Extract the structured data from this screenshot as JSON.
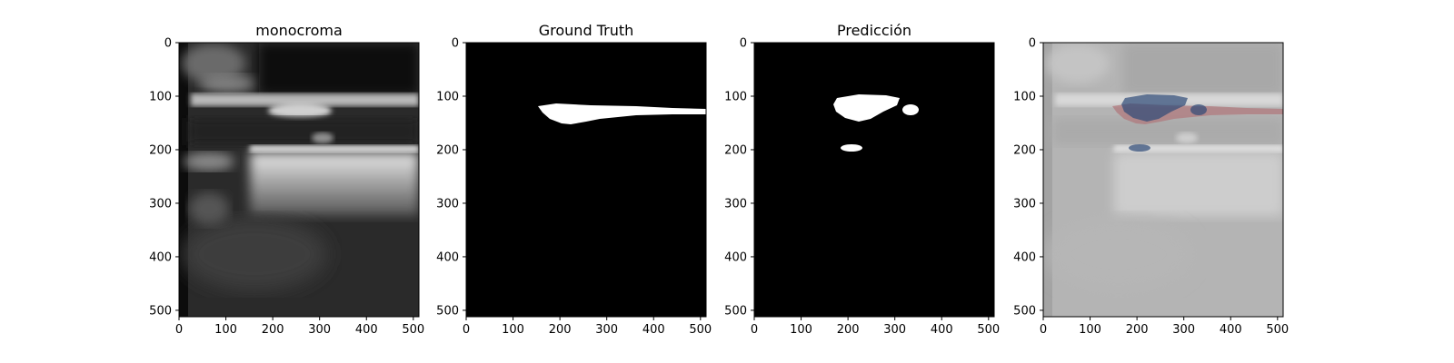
{
  "chart_data": [
    {
      "type": "image",
      "title": "monocroma",
      "content": "grayscale ultrasound",
      "xlim": [
        0,
        512
      ],
      "ylim": [
        512,
        0
      ],
      "xticks": [
        0,
        100,
        200,
        300,
        400,
        500
      ],
      "yticks": [
        0,
        100,
        200,
        300,
        400,
        500
      ]
    },
    {
      "type": "image",
      "title": "Ground Truth",
      "content": "binary mask",
      "xlim": [
        0,
        512
      ],
      "ylim": [
        512,
        0
      ],
      "xticks": [
        0,
        100,
        200,
        300,
        400,
        500
      ],
      "yticks": [
        0,
        100,
        200,
        300,
        400,
        500
      ]
    },
    {
      "type": "image",
      "title": "Predicción",
      "content": "binary mask",
      "xlim": [
        0,
        512
      ],
      "ylim": [
        512,
        0
      ],
      "xticks": [
        0,
        100,
        200,
        300,
        400,
        500
      ],
      "yticks": [
        0,
        100,
        200,
        300,
        400,
        500
      ]
    },
    {
      "type": "image",
      "title": "",
      "content": "overlay of ground truth (red) and prediction (blue) on ultrasound",
      "xlim": [
        0,
        512
      ],
      "ylim": [
        512,
        0
      ],
      "xticks": [
        0,
        100,
        200,
        300,
        400,
        500
      ],
      "yticks": [
        0,
        100,
        200,
        300,
        400,
        500
      ]
    }
  ],
  "colors": {
    "mask_background": "#000000",
    "mask_foreground": "#ffffff",
    "overlay_ground_truth": "#b07a7e",
    "overlay_prediction": "#2e4a78"
  }
}
